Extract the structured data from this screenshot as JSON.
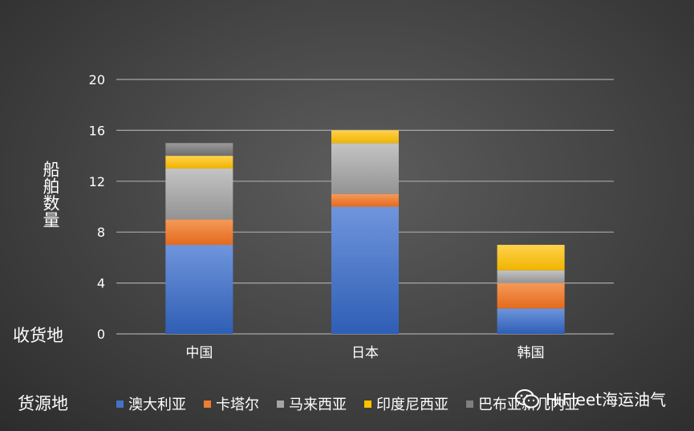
{
  "chart_data": {
    "type": "bar",
    "stacked": true,
    "categories": [
      "中国",
      "日本",
      "韩国"
    ],
    "series": [
      {
        "name": "澳大利亚",
        "color": "#4472c4",
        "values": [
          7,
          10,
          2
        ]
      },
      {
        "name": "卡塔尔",
        "color": "#ed7d31",
        "values": [
          2,
          1,
          2
        ]
      },
      {
        "name": "马来西亚",
        "color": "#a5a5a5",
        "values": [
          4,
          4,
          1
        ]
      },
      {
        "name": "印度尼西亚",
        "color": "#ffc000",
        "values": [
          1,
          1,
          2
        ]
      },
      {
        "name": "巴布亚新几内亚",
        "color": "#7f7f7f",
        "values": [
          1,
          0,
          0
        ]
      }
    ],
    "ylim": [
      0,
      20
    ],
    "yticks": [
      0,
      4,
      8,
      12,
      16,
      20
    ],
    "ylabel": "船舶数量",
    "xlabel": "收货地",
    "legend_title": "货源地",
    "grid": true,
    "legend_position": "bottom"
  },
  "watermark": {
    "text": "HiFleet海运油气",
    "icon": "wechat-icon"
  }
}
